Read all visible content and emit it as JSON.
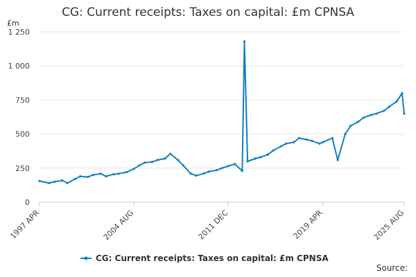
{
  "chart_data": {
    "type": "line",
    "title": "CG: Current receipts: Taxes on capital: £m CPNSA",
    "ylabel": "£m",
    "xlabel": "",
    "ylim": [
      0,
      1250
    ],
    "yticks": [
      0,
      250,
      500,
      750,
      1000,
      1250
    ],
    "ytick_labels": [
      "0",
      "250",
      "500",
      "750",
      "1 000",
      "1 250"
    ],
    "xticks": [
      {
        "x": "1997-04",
        "label": "1997 APR"
      },
      {
        "x": "2004-08",
        "label": "2004 AUG"
      },
      {
        "x": "2011-12",
        "label": "2011 DEC"
      },
      {
        "x": "2019-04",
        "label": "2019 APR"
      },
      {
        "x": "2025-08",
        "label": "2025 AUG"
      }
    ],
    "x_range": [
      "1997-04",
      "2025-08"
    ],
    "grid": "horizontal",
    "legend_position": "bottom",
    "series_color": "#0f7fc2",
    "series": [
      {
        "name": "CG: Current receipts: Taxes on capital: £m CPNSA",
        "points": [
          [
            "1997-04",
            155
          ],
          [
            "1998-01",
            140
          ],
          [
            "1998-06",
            150
          ],
          [
            "1999-01",
            160
          ],
          [
            "1999-06",
            140
          ],
          [
            "2000-01",
            170
          ],
          [
            "2000-06",
            190
          ],
          [
            "2001-01",
            185
          ],
          [
            "2001-06",
            200
          ],
          [
            "2002-01",
            210
          ],
          [
            "2002-06",
            190
          ],
          [
            "2003-01",
            205
          ],
          [
            "2003-06",
            210
          ],
          [
            "2004-01",
            220
          ],
          [
            "2004-08",
            245
          ],
          [
            "2005-01",
            270
          ],
          [
            "2005-06",
            290
          ],
          [
            "2006-01",
            295
          ],
          [
            "2006-06",
            310
          ],
          [
            "2007-01",
            320
          ],
          [
            "2007-06",
            355
          ],
          [
            "2008-01",
            310
          ],
          [
            "2008-06",
            270
          ],
          [
            "2009-01",
            210
          ],
          [
            "2009-06",
            195
          ],
          [
            "2010-01",
            210
          ],
          [
            "2010-06",
            225
          ],
          [
            "2011-01",
            235
          ],
          [
            "2011-06",
            250
          ],
          [
            "2011-12",
            265
          ],
          [
            "2012-06",
            280
          ],
          [
            "2013-01",
            230
          ],
          [
            "2013-03",
            1180
          ],
          [
            "2013-06",
            300
          ],
          [
            "2014-01",
            320
          ],
          [
            "2014-06",
            330
          ],
          [
            "2015-01",
            350
          ],
          [
            "2015-06",
            380
          ],
          [
            "2016-01",
            410
          ],
          [
            "2016-06",
            430
          ],
          [
            "2017-01",
            440
          ],
          [
            "2017-06",
            470
          ],
          [
            "2018-01",
            460
          ],
          [
            "2018-06",
            450
          ],
          [
            "2019-01",
            430
          ],
          [
            "2019-04",
            440
          ],
          [
            "2020-01",
            470
          ],
          [
            "2020-06",
            310
          ],
          [
            "2021-01",
            500
          ],
          [
            "2021-06",
            560
          ],
          [
            "2022-01",
            590
          ],
          [
            "2022-06",
            620
          ],
          [
            "2023-01",
            640
          ],
          [
            "2023-06",
            650
          ],
          [
            "2024-01",
            670
          ],
          [
            "2024-06",
            700
          ],
          [
            "2025-01",
            740
          ],
          [
            "2025-06",
            800
          ],
          [
            "2025-08",
            650
          ]
        ]
      }
    ],
    "source_label": "Source:"
  }
}
